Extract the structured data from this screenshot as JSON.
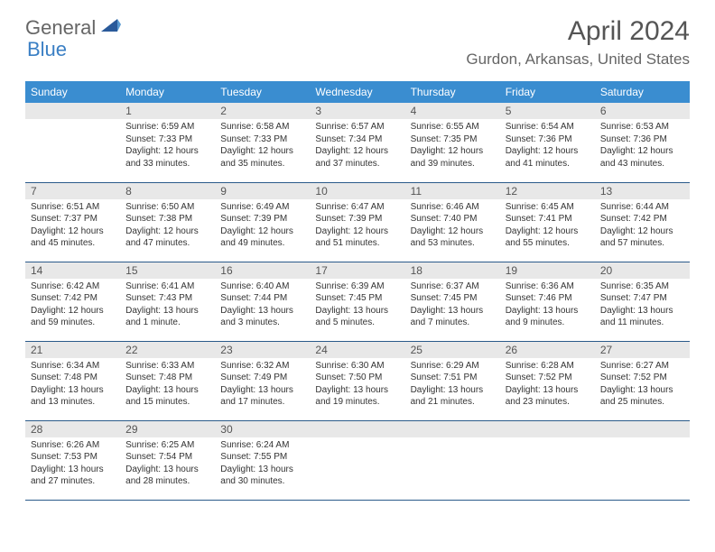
{
  "logo": {
    "part1": "General",
    "part2": "Blue"
  },
  "title": "April 2024",
  "location": "Gurdon, Arkansas, United States",
  "colors": {
    "header_bg": "#3a8dd0",
    "header_text": "#ffffff",
    "daynum_bg": "#e8e8e8",
    "border": "#2a5a8a",
    "logo_gray": "#666666",
    "logo_blue": "#3a7fc4"
  },
  "weekdays": [
    "Sunday",
    "Monday",
    "Tuesday",
    "Wednesday",
    "Thursday",
    "Friday",
    "Saturday"
  ],
  "weeks": [
    [
      {
        "empty": true
      },
      {
        "n": "1",
        "sr": "Sunrise: 6:59 AM",
        "ss": "Sunset: 7:33 PM",
        "d1": "Daylight: 12 hours",
        "d2": "and 33 minutes."
      },
      {
        "n": "2",
        "sr": "Sunrise: 6:58 AM",
        "ss": "Sunset: 7:33 PM",
        "d1": "Daylight: 12 hours",
        "d2": "and 35 minutes."
      },
      {
        "n": "3",
        "sr": "Sunrise: 6:57 AM",
        "ss": "Sunset: 7:34 PM",
        "d1": "Daylight: 12 hours",
        "d2": "and 37 minutes."
      },
      {
        "n": "4",
        "sr": "Sunrise: 6:55 AM",
        "ss": "Sunset: 7:35 PM",
        "d1": "Daylight: 12 hours",
        "d2": "and 39 minutes."
      },
      {
        "n": "5",
        "sr": "Sunrise: 6:54 AM",
        "ss": "Sunset: 7:36 PM",
        "d1": "Daylight: 12 hours",
        "d2": "and 41 minutes."
      },
      {
        "n": "6",
        "sr": "Sunrise: 6:53 AM",
        "ss": "Sunset: 7:36 PM",
        "d1": "Daylight: 12 hours",
        "d2": "and 43 minutes."
      }
    ],
    [
      {
        "n": "7",
        "sr": "Sunrise: 6:51 AM",
        "ss": "Sunset: 7:37 PM",
        "d1": "Daylight: 12 hours",
        "d2": "and 45 minutes."
      },
      {
        "n": "8",
        "sr": "Sunrise: 6:50 AM",
        "ss": "Sunset: 7:38 PM",
        "d1": "Daylight: 12 hours",
        "d2": "and 47 minutes."
      },
      {
        "n": "9",
        "sr": "Sunrise: 6:49 AM",
        "ss": "Sunset: 7:39 PM",
        "d1": "Daylight: 12 hours",
        "d2": "and 49 minutes."
      },
      {
        "n": "10",
        "sr": "Sunrise: 6:47 AM",
        "ss": "Sunset: 7:39 PM",
        "d1": "Daylight: 12 hours",
        "d2": "and 51 minutes."
      },
      {
        "n": "11",
        "sr": "Sunrise: 6:46 AM",
        "ss": "Sunset: 7:40 PM",
        "d1": "Daylight: 12 hours",
        "d2": "and 53 minutes."
      },
      {
        "n": "12",
        "sr": "Sunrise: 6:45 AM",
        "ss": "Sunset: 7:41 PM",
        "d1": "Daylight: 12 hours",
        "d2": "and 55 minutes."
      },
      {
        "n": "13",
        "sr": "Sunrise: 6:44 AM",
        "ss": "Sunset: 7:42 PM",
        "d1": "Daylight: 12 hours",
        "d2": "and 57 minutes."
      }
    ],
    [
      {
        "n": "14",
        "sr": "Sunrise: 6:42 AM",
        "ss": "Sunset: 7:42 PM",
        "d1": "Daylight: 12 hours",
        "d2": "and 59 minutes."
      },
      {
        "n": "15",
        "sr": "Sunrise: 6:41 AM",
        "ss": "Sunset: 7:43 PM",
        "d1": "Daylight: 13 hours",
        "d2": "and 1 minute."
      },
      {
        "n": "16",
        "sr": "Sunrise: 6:40 AM",
        "ss": "Sunset: 7:44 PM",
        "d1": "Daylight: 13 hours",
        "d2": "and 3 minutes."
      },
      {
        "n": "17",
        "sr": "Sunrise: 6:39 AM",
        "ss": "Sunset: 7:45 PM",
        "d1": "Daylight: 13 hours",
        "d2": "and 5 minutes."
      },
      {
        "n": "18",
        "sr": "Sunrise: 6:37 AM",
        "ss": "Sunset: 7:45 PM",
        "d1": "Daylight: 13 hours",
        "d2": "and 7 minutes."
      },
      {
        "n": "19",
        "sr": "Sunrise: 6:36 AM",
        "ss": "Sunset: 7:46 PM",
        "d1": "Daylight: 13 hours",
        "d2": "and 9 minutes."
      },
      {
        "n": "20",
        "sr": "Sunrise: 6:35 AM",
        "ss": "Sunset: 7:47 PM",
        "d1": "Daylight: 13 hours",
        "d2": "and 11 minutes."
      }
    ],
    [
      {
        "n": "21",
        "sr": "Sunrise: 6:34 AM",
        "ss": "Sunset: 7:48 PM",
        "d1": "Daylight: 13 hours",
        "d2": "and 13 minutes."
      },
      {
        "n": "22",
        "sr": "Sunrise: 6:33 AM",
        "ss": "Sunset: 7:48 PM",
        "d1": "Daylight: 13 hours",
        "d2": "and 15 minutes."
      },
      {
        "n": "23",
        "sr": "Sunrise: 6:32 AM",
        "ss": "Sunset: 7:49 PM",
        "d1": "Daylight: 13 hours",
        "d2": "and 17 minutes."
      },
      {
        "n": "24",
        "sr": "Sunrise: 6:30 AM",
        "ss": "Sunset: 7:50 PM",
        "d1": "Daylight: 13 hours",
        "d2": "and 19 minutes."
      },
      {
        "n": "25",
        "sr": "Sunrise: 6:29 AM",
        "ss": "Sunset: 7:51 PM",
        "d1": "Daylight: 13 hours",
        "d2": "and 21 minutes."
      },
      {
        "n": "26",
        "sr": "Sunrise: 6:28 AM",
        "ss": "Sunset: 7:52 PM",
        "d1": "Daylight: 13 hours",
        "d2": "and 23 minutes."
      },
      {
        "n": "27",
        "sr": "Sunrise: 6:27 AM",
        "ss": "Sunset: 7:52 PM",
        "d1": "Daylight: 13 hours",
        "d2": "and 25 minutes."
      }
    ],
    [
      {
        "n": "28",
        "sr": "Sunrise: 6:26 AM",
        "ss": "Sunset: 7:53 PM",
        "d1": "Daylight: 13 hours",
        "d2": "and 27 minutes."
      },
      {
        "n": "29",
        "sr": "Sunrise: 6:25 AM",
        "ss": "Sunset: 7:54 PM",
        "d1": "Daylight: 13 hours",
        "d2": "and 28 minutes."
      },
      {
        "n": "30",
        "sr": "Sunrise: 6:24 AM",
        "ss": "Sunset: 7:55 PM",
        "d1": "Daylight: 13 hours",
        "d2": "and 30 minutes."
      },
      {
        "empty": true
      },
      {
        "empty": true
      },
      {
        "empty": true
      },
      {
        "empty": true
      }
    ]
  ]
}
